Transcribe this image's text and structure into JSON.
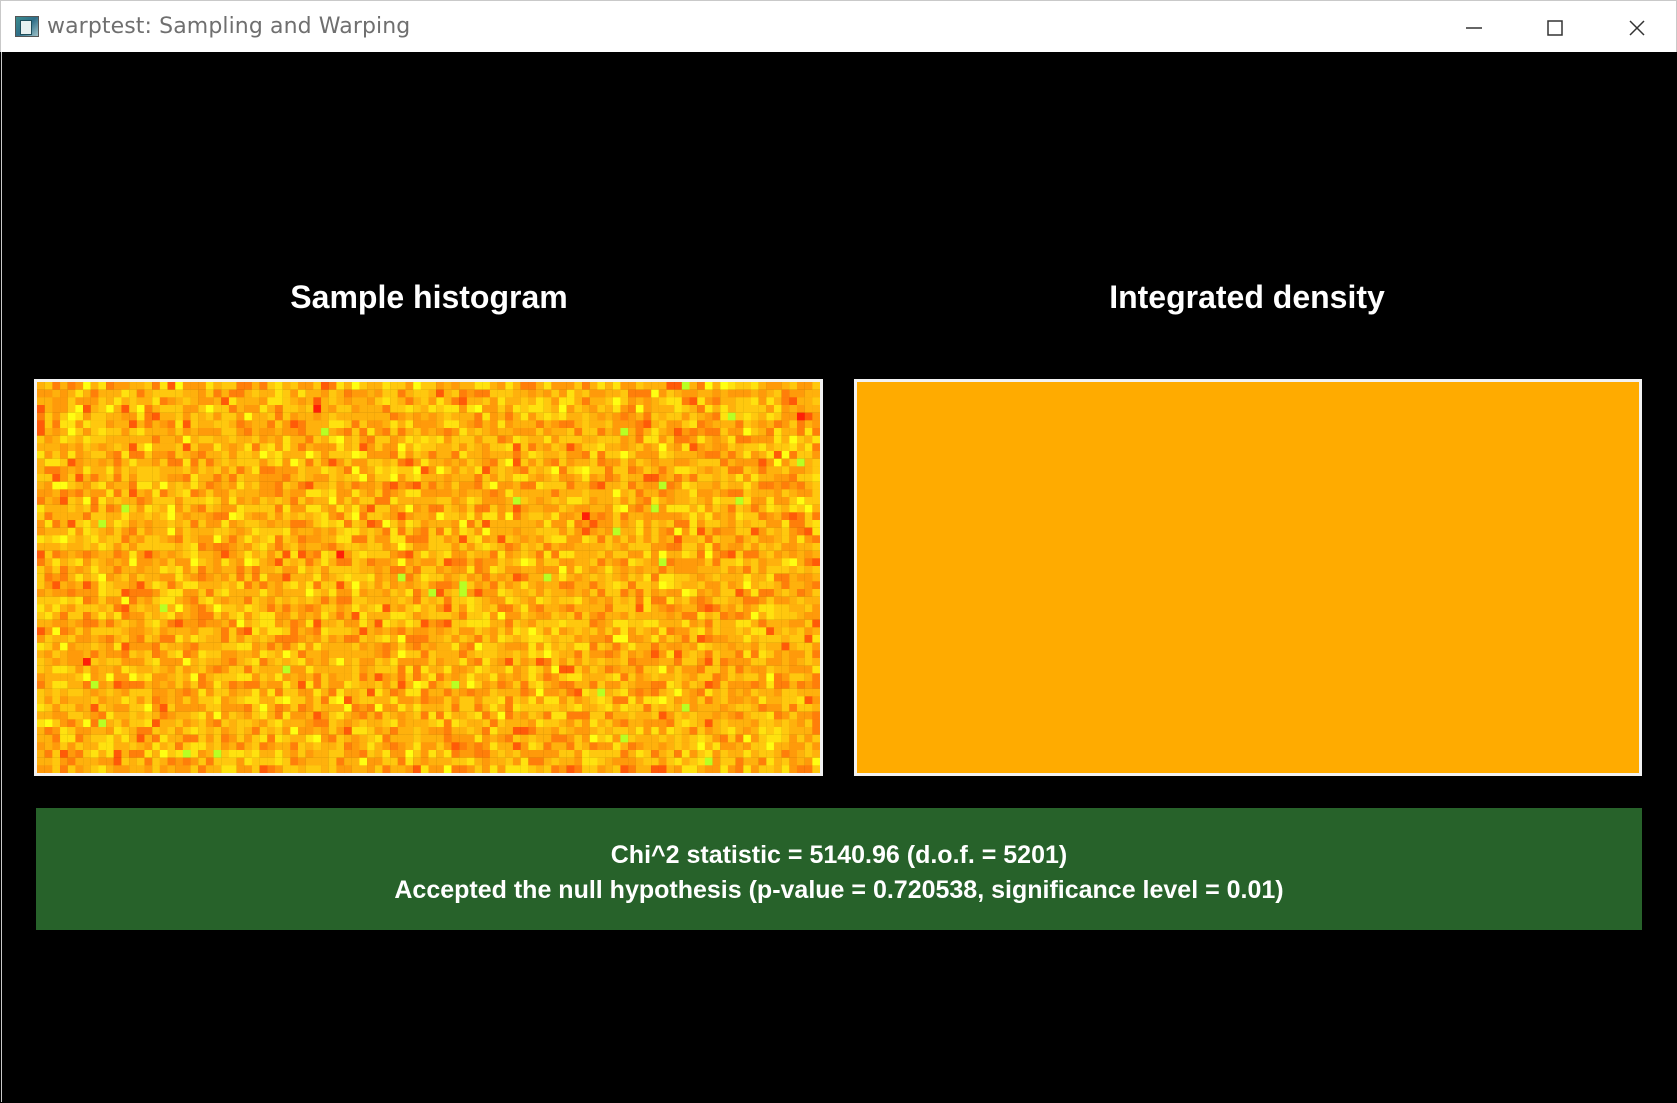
{
  "window": {
    "title": "warptest: Sampling and Warping",
    "minimize_icon": "minimize-icon",
    "maximize_icon": "maximize-icon",
    "close_icon": "close-icon"
  },
  "panels": {
    "left_title": "Sample histogram",
    "right_title": "Integrated density"
  },
  "histogram": {
    "grid_cols": 102,
    "grid_rows": 51,
    "palette": [
      "#ff1f08",
      "#ff5a08",
      "#ff7e0a",
      "#ff9a0a",
      "#ffb10c",
      "#ffc80e",
      "#ffe20f",
      "#ffff12",
      "#b8ff24"
    ]
  },
  "density": {
    "color": "#ffab00"
  },
  "result": {
    "line1": "Chi^2 statistic = 5140.96 (d.o.f. = 5201)",
    "line2": "Accepted the null hypothesis (p-value = 0.720538, significance level = 0.01)",
    "color": "#27622a"
  }
}
